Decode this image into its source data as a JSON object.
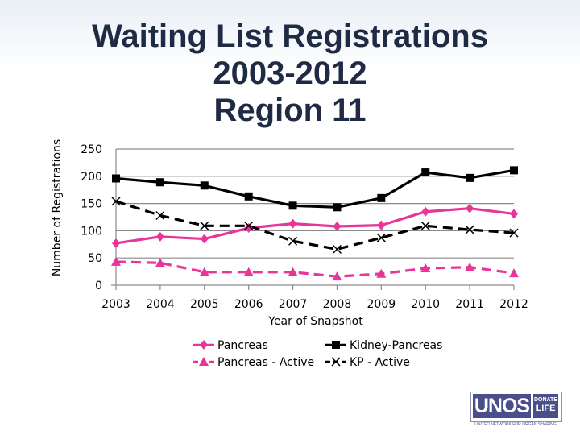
{
  "slide": {
    "title_lines": [
      "Waiting List Registrations",
      "2003-2012",
      "Region 11"
    ]
  },
  "logo": {
    "main": "UNOS",
    "badge_line1": "DONATE",
    "badge_line2": "LIFE",
    "subtitle": "UNITED NETWORK FOR ORGAN SHARING"
  },
  "chart_data": {
    "type": "line",
    "xlabel": "Year of Snapshot",
    "ylabel": "Number of Registrations",
    "categories": [
      "2003",
      "2004",
      "2005",
      "2006",
      "2007",
      "2008",
      "2009",
      "2010",
      "2011",
      "2012"
    ],
    "ylim": [
      0,
      250
    ],
    "yticks": [
      0,
      50,
      100,
      150,
      200,
      250
    ],
    "grid": true,
    "legend": "bottom",
    "series": [
      {
        "name": "Pancreas",
        "color": "#e8359a",
        "dash": "solid",
        "marker": "diamond",
        "values": [
          77,
          89,
          85,
          105,
          113,
          108,
          110,
          135,
          141,
          131
        ]
      },
      {
        "name": "Kidney-Pancreas",
        "color": "#000000",
        "dash": "solid",
        "marker": "square",
        "values": [
          196,
          189,
          183,
          163,
          146,
          143,
          160,
          207,
          197,
          211
        ]
      },
      {
        "name": "Pancreas - Active",
        "color": "#e8359a",
        "dash": "dashed",
        "marker": "triangle",
        "values": [
          43,
          41,
          24,
          24,
          24,
          16,
          21,
          31,
          33,
          22
        ]
      },
      {
        "name": "KP - Active",
        "color": "#000000",
        "dash": "dashed",
        "marker": "x",
        "values": [
          154,
          128,
          109,
          109,
          81,
          66,
          87,
          109,
          102,
          96
        ]
      }
    ]
  }
}
